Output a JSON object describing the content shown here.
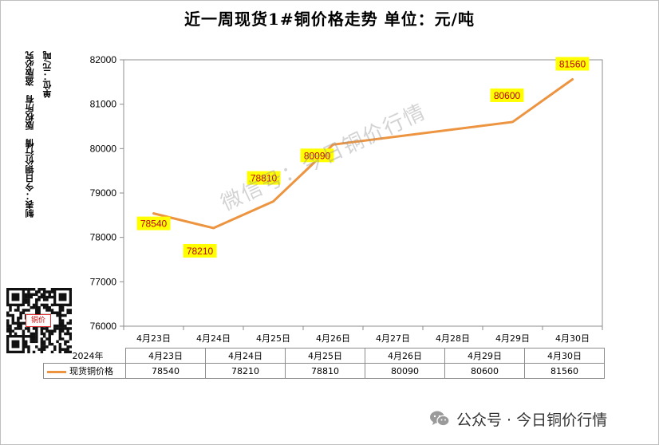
{
  "title": "近一周现货1#铜价格走势 单位：元/吨",
  "side_labels": {
    "col1": "制表：今日铜价行情　版权所有　盗版必究",
    "col2": "单位：元/吨"
  },
  "qr_label": "铜价",
  "watermark": "微信号：今日铜价行情",
  "colors": {
    "line": "#ed9440",
    "label_bg": "#ffff00",
    "label_text": "#c00000"
  },
  "chart_data": {
    "type": "line",
    "title": "近一周现货1#铜价格走势 单位：元/吨",
    "xlabel": "",
    "ylabel": "",
    "ylim": [
      76000,
      82000
    ],
    "yticks": [
      "82000",
      "81000",
      "80000",
      "79000",
      "78000",
      "77000",
      "76000"
    ],
    "x_axis_ticks": [
      "4月23日",
      "4月24日",
      "4月25日",
      "4月26日",
      "4月27日",
      "4月28日",
      "4月29日",
      "4月30日"
    ],
    "series": [
      {
        "name": "现货铜价格",
        "points": [
          {
            "x": "4月23日",
            "y": 78540,
            "label": "78540"
          },
          {
            "x": "4月24日",
            "y": 78210,
            "label": "78210"
          },
          {
            "x": "4月25日",
            "y": 78810,
            "label": "78810"
          },
          {
            "x": "4月26日",
            "y": 80090,
            "label": "80090"
          },
          {
            "x": "4月29日",
            "y": 80600,
            "label": "80600"
          },
          {
            "x": "4月30日",
            "y": 81560,
            "label": "81560"
          }
        ]
      }
    ],
    "grid": false,
    "legend": "bottom-table"
  },
  "table": {
    "year": "2024年",
    "headers": [
      "4月23日",
      "4月24日",
      "4月25日",
      "4月26日",
      "4月29日",
      "4月30日"
    ],
    "series_name": "现货铜价格",
    "values": [
      "78540",
      "78210",
      "78810",
      "80090",
      "80600",
      "81560"
    ]
  },
  "footer": {
    "text": "公众号 · 今日铜价行情"
  }
}
